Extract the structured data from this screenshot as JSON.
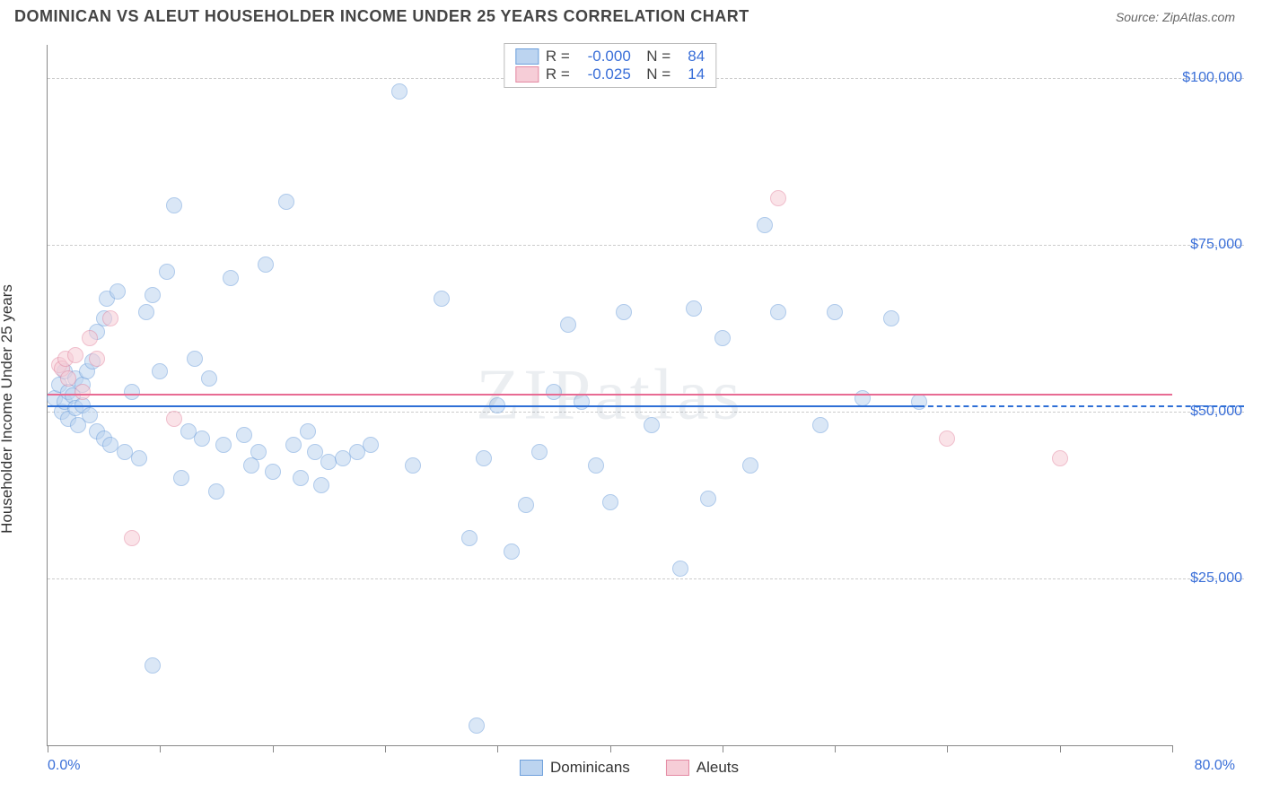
{
  "title": "DOMINICAN VS ALEUT HOUSEHOLDER INCOME UNDER 25 YEARS CORRELATION CHART",
  "source": "Source: ZipAtlas.com",
  "watermark": "ZIPatlas",
  "chart": {
    "type": "scatter",
    "y_axis_label": "Householder Income Under 25 years",
    "xlim": [
      0,
      80
    ],
    "ylim": [
      0,
      105000
    ],
    "x_tick_step": 8,
    "y_gridlines": [
      25000,
      50000,
      75000,
      100000
    ],
    "y_tick_labels": [
      "$25,000",
      "$50,000",
      "$75,000",
      "$100,000"
    ],
    "x_min_label": "0.0%",
    "x_max_label": "80.0%",
    "background_color": "#ffffff",
    "grid_color": "#cccccc",
    "axis_color": "#888888",
    "label_color": "#3a6fd8",
    "point_radius": 9,
    "point_opacity": 0.55,
    "series": [
      {
        "name": "Dominicans",
        "fill_color": "#bcd4f0",
        "stroke_color": "#6fa0db",
        "reg_line_color": "#2e6fd6",
        "R": "-0.000",
        "N": "84",
        "reg_y_start": 51000,
        "reg_y_end": 50800,
        "reg_solid_end_x": 62,
        "points": [
          [
            0.5,
            52000
          ],
          [
            0.8,
            54000
          ],
          [
            1.0,
            50000
          ],
          [
            1.2,
            56000
          ],
          [
            1.2,
            51500
          ],
          [
            1.5,
            53000
          ],
          [
            1.5,
            49000
          ],
          [
            1.8,
            52500
          ],
          [
            2.0,
            55000
          ],
          [
            2.0,
            50500
          ],
          [
            2.2,
            48000
          ],
          [
            2.5,
            54000
          ],
          [
            2.5,
            51000
          ],
          [
            2.8,
            56000
          ],
          [
            3.0,
            49500
          ],
          [
            3.2,
            57500
          ],
          [
            3.5,
            47000
          ],
          [
            3.5,
            62000
          ],
          [
            4.0,
            46000
          ],
          [
            4.2,
            67000
          ],
          [
            4.5,
            45000
          ],
          [
            5.0,
            68000
          ],
          [
            5.5,
            44000
          ],
          [
            6.0,
            53000
          ],
          [
            6.5,
            43000
          ],
          [
            7.0,
            65000
          ],
          [
            7.5,
            67500
          ],
          [
            8.0,
            56000
          ],
          [
            8.5,
            71000
          ],
          [
            9.0,
            81000
          ],
          [
            9.5,
            40000
          ],
          [
            10.0,
            47000
          ],
          [
            10.5,
            58000
          ],
          [
            11.0,
            46000
          ],
          [
            11.5,
            55000
          ],
          [
            12.0,
            38000
          ],
          [
            12.5,
            45000
          ],
          [
            13.0,
            70000
          ],
          [
            14.0,
            46500
          ],
          [
            14.5,
            42000
          ],
          [
            15.0,
            44000
          ],
          [
            15.5,
            72000
          ],
          [
            16.0,
            41000
          ],
          [
            17.0,
            81500
          ],
          [
            17.5,
            45000
          ],
          [
            18.0,
            40000
          ],
          [
            18.5,
            47000
          ],
          [
            19.0,
            44000
          ],
          [
            19.5,
            39000
          ],
          [
            20.0,
            42500
          ],
          [
            21.0,
            43000
          ],
          [
            22.0,
            44000
          ],
          [
            23.0,
            45000
          ],
          [
            25.0,
            98000
          ],
          [
            26.0,
            42000
          ],
          [
            28.0,
            67000
          ],
          [
            30.0,
            31000
          ],
          [
            30.5,
            3000
          ],
          [
            31.0,
            43000
          ],
          [
            32.0,
            51000
          ],
          [
            33.0,
            29000
          ],
          [
            34.0,
            36000
          ],
          [
            35.0,
            44000
          ],
          [
            36.0,
            53000
          ],
          [
            37.0,
            63000
          ],
          [
            38.0,
            51500
          ],
          [
            39.0,
            42000
          ],
          [
            40.0,
            36500
          ],
          [
            41.0,
            65000
          ],
          [
            43.0,
            48000
          ],
          [
            45.0,
            26500
          ],
          [
            46.0,
            65500
          ],
          [
            47.0,
            37000
          ],
          [
            48.0,
            61000
          ],
          [
            50.0,
            42000
          ],
          [
            51.0,
            78000
          ],
          [
            52.0,
            65000
          ],
          [
            55.0,
            48000
          ],
          [
            56.0,
            65000
          ],
          [
            58.0,
            52000
          ],
          [
            60.0,
            64000
          ],
          [
            62.0,
            51500
          ],
          [
            7.5,
            12000
          ],
          [
            4.0,
            64000
          ]
        ]
      },
      {
        "name": "Aleuts",
        "fill_color": "#f6cdd7",
        "stroke_color": "#e48aa3",
        "reg_line_color": "#e86b93",
        "R": "-0.025",
        "N": "14",
        "reg_y_start": 53000,
        "reg_y_end": 52300,
        "reg_solid_end_x": 80,
        "points": [
          [
            0.8,
            57000
          ],
          [
            1.0,
            56500
          ],
          [
            1.3,
            58000
          ],
          [
            1.5,
            55000
          ],
          [
            2.0,
            58500
          ],
          [
            2.5,
            53000
          ],
          [
            3.0,
            61000
          ],
          [
            3.5,
            58000
          ],
          [
            4.5,
            64000
          ],
          [
            6.0,
            31000
          ],
          [
            9.0,
            49000
          ],
          [
            52.0,
            82000
          ],
          [
            64.0,
            46000
          ],
          [
            72.0,
            43000
          ]
        ]
      }
    ],
    "legend_bottom": [
      {
        "label": "Dominicans",
        "fill": "#bcd4f0",
        "stroke": "#6fa0db"
      },
      {
        "label": "Aleuts",
        "fill": "#f6cdd7",
        "stroke": "#e48aa3"
      }
    ]
  }
}
